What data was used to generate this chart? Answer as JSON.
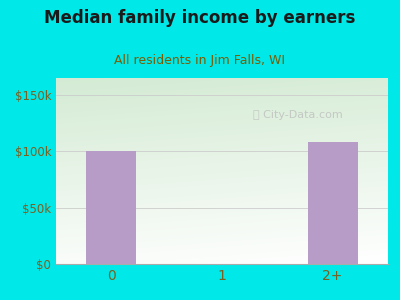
{
  "title": "Median family income by earners",
  "subtitle": "All residents in Jim Falls, WI",
  "categories": [
    "0",
    "1",
    "2+"
  ],
  "values": [
    100000,
    0,
    108000
  ],
  "bar_color": "#b89cc8",
  "bar_width": 0.45,
  "ylim": [
    0,
    165000
  ],
  "yticks": [
    0,
    50000,
    100000,
    150000
  ],
  "ytick_labels": [
    "$0",
    "$50k",
    "$100k",
    "$150k"
  ],
  "title_color": "#1a1a1a",
  "subtitle_color": "#7a5c00",
  "tick_color": "#7a6020",
  "bg_outer": "#00e8e8",
  "watermark": "City-Data.com",
  "title_fontsize": 12,
  "subtitle_fontsize": 9,
  "gradient_top_left": "#d4ecd4",
  "gradient_bottom_right": "#f8fff8"
}
